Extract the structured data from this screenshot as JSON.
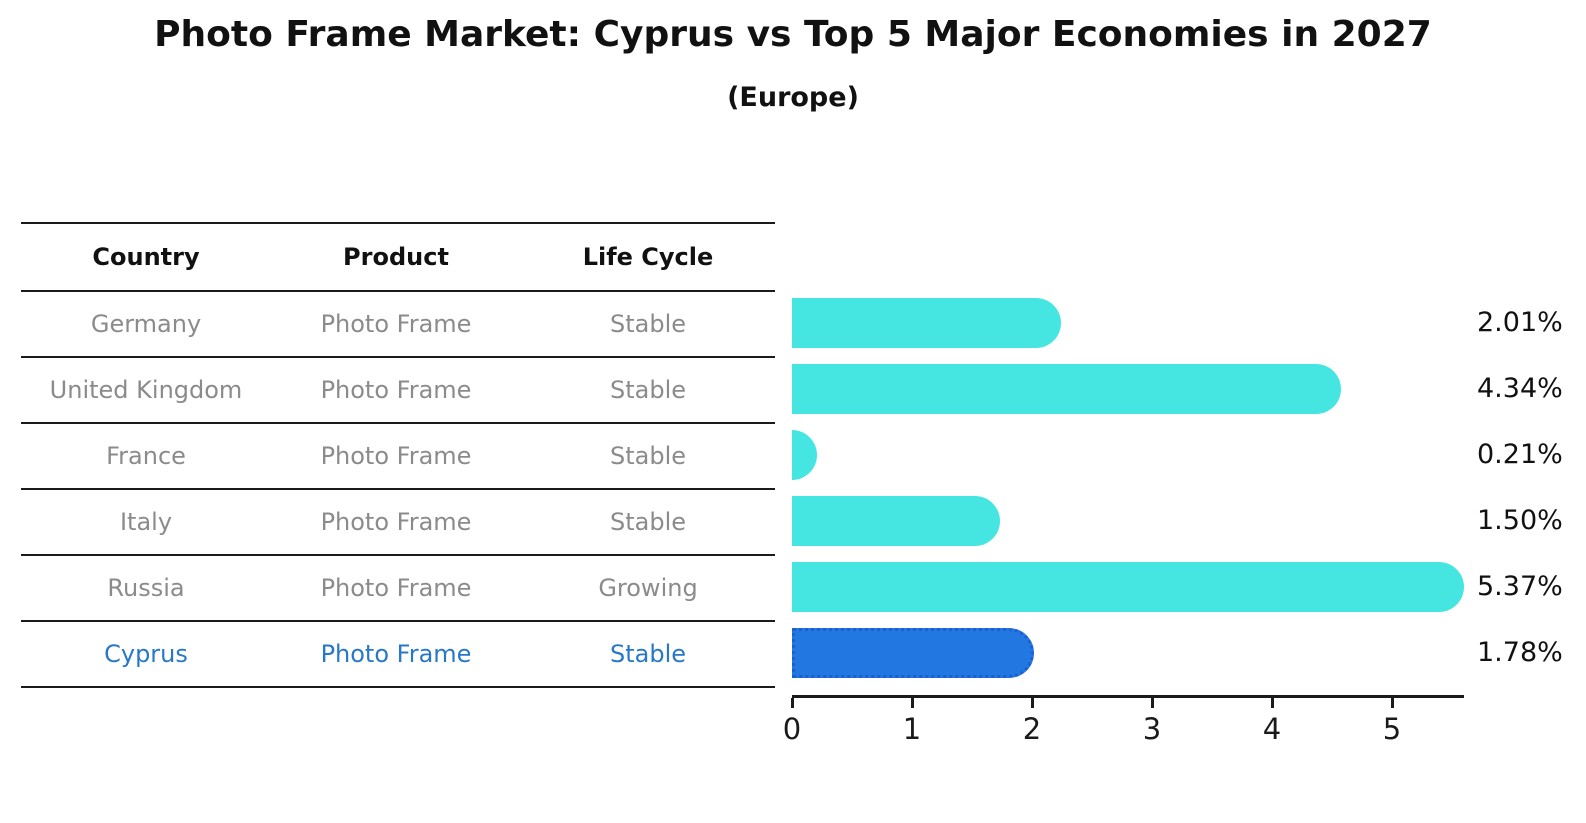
{
  "title": "Photo Frame Market: Cyprus vs Top 5 Major Economies in 2027",
  "subtitle": "(Europe)",
  "table": {
    "headers": [
      "Country",
      "Product",
      "Life Cycle"
    ],
    "rows": [
      {
        "country": "Germany",
        "product": "Photo Frame",
        "life_cycle": "Stable",
        "highlight": false
      },
      {
        "country": "United Kingdom",
        "product": "Photo Frame",
        "life_cycle": "Stable",
        "highlight": false
      },
      {
        "country": "France",
        "product": "Photo Frame",
        "life_cycle": "Stable",
        "highlight": false
      },
      {
        "country": "Italy",
        "product": "Photo Frame",
        "life_cycle": "Stable",
        "highlight": false
      },
      {
        "country": "Russia",
        "product": "Photo Frame",
        "life_cycle": "Growing",
        "highlight": false
      },
      {
        "country": "Cyprus",
        "product": "Photo Frame",
        "life_cycle": "Stable",
        "highlight": true
      }
    ]
  },
  "chart_data": {
    "type": "bar",
    "orientation": "horizontal",
    "title": "Photo Frame Market: Cyprus vs Top 5 Major Economies in 2027",
    "subtitle": "(Europe)",
    "categories": [
      "Germany",
      "United Kingdom",
      "France",
      "Italy",
      "Russia",
      "Cyprus"
    ],
    "values": [
      2.01,
      4.34,
      0.21,
      1.5,
      5.37,
      1.78
    ],
    "value_labels": [
      "2.01%",
      "4.34%",
      "0.21%",
      "1.50%",
      "5.37%",
      "1.78%"
    ],
    "xticks": [
      0,
      1,
      2,
      3,
      4,
      5
    ],
    "xlim": [
      0,
      5.6
    ],
    "grid": false,
    "legend": false,
    "highlight_index": 5,
    "bar_color": "#45e6e1",
    "highlight_color": "#2277e0",
    "highlight_text_color": "#2878c8"
  }
}
